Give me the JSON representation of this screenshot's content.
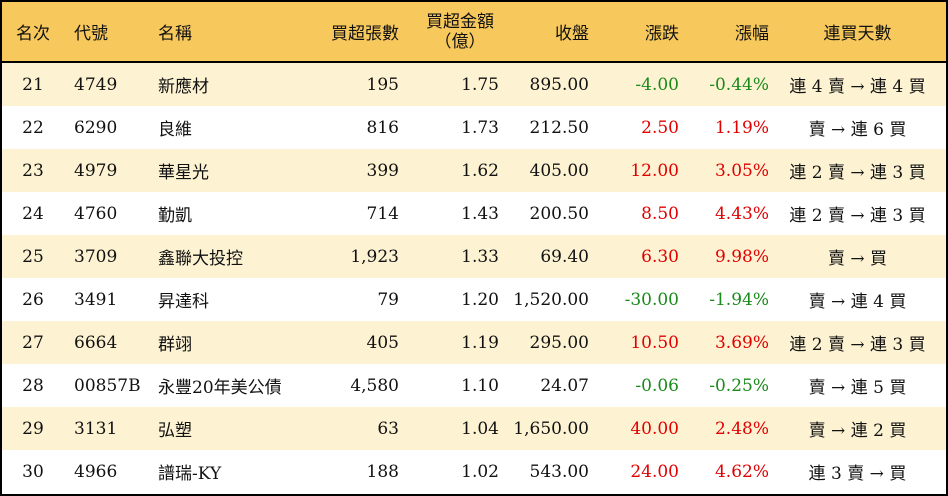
{
  "headers": {
    "rank": "名次",
    "code": "代號",
    "name": "名稱",
    "net_buy_volume": "買超張數",
    "net_buy_amount_line1": "買超金額",
    "net_buy_amount_line2": "（億）",
    "close": "收盤",
    "change": "漲跌",
    "change_pct": "漲幅",
    "streak": "連買天數"
  },
  "colors": {
    "header_bg": "#f7c85c",
    "odd_row_bg": "#fdf3d3",
    "even_row_bg": "#ffffff",
    "positive": "#e00000",
    "negative": "#1a8a1a"
  },
  "rows": [
    {
      "rank": "21",
      "code": "4749",
      "name": "新應材",
      "volume": "195",
      "amount": "1.75",
      "close": "895.00",
      "change": "-4.00",
      "pct": "-0.44%",
      "streak": "連 4 賣 → 連 4 買",
      "dir": "neg"
    },
    {
      "rank": "22",
      "code": "6290",
      "name": "良維",
      "volume": "816",
      "amount": "1.73",
      "close": "212.50",
      "change": "2.50",
      "pct": "1.19%",
      "streak": "賣 → 連 6 買",
      "dir": "pos"
    },
    {
      "rank": "23",
      "code": "4979",
      "name": "華星光",
      "volume": "399",
      "amount": "1.62",
      "close": "405.00",
      "change": "12.00",
      "pct": "3.05%",
      "streak": "連 2 賣 → 連 3 買",
      "dir": "pos"
    },
    {
      "rank": "24",
      "code": "4760",
      "name": "勤凱",
      "volume": "714",
      "amount": "1.43",
      "close": "200.50",
      "change": "8.50",
      "pct": "4.43%",
      "streak": "連 2 賣 → 連 3 買",
      "dir": "pos"
    },
    {
      "rank": "25",
      "code": "3709",
      "name": "鑫聯大投控",
      "volume": "1,923",
      "amount": "1.33",
      "close": "69.40",
      "change": "6.30",
      "pct": "9.98%",
      "streak": "賣 → 買",
      "dir": "pos"
    },
    {
      "rank": "26",
      "code": "3491",
      "name": "昇達科",
      "volume": "79",
      "amount": "1.20",
      "close": "1,520.00",
      "change": "-30.00",
      "pct": "-1.94%",
      "streak": "賣 → 連 4 買",
      "dir": "neg"
    },
    {
      "rank": "27",
      "code": "6664",
      "name": "群翊",
      "volume": "405",
      "amount": "1.19",
      "close": "295.00",
      "change": "10.50",
      "pct": "3.69%",
      "streak": "連 2 賣 → 連 3 買",
      "dir": "pos"
    },
    {
      "rank": "28",
      "code": "00857B",
      "name": "永豐20年美公債",
      "volume": "4,580",
      "amount": "1.10",
      "close": "24.07",
      "change": "-0.06",
      "pct": "-0.25%",
      "streak": "賣 → 連 5 買",
      "dir": "neg"
    },
    {
      "rank": "29",
      "code": "3131",
      "name": "弘塑",
      "volume": "63",
      "amount": "1.04",
      "close": "1,650.00",
      "change": "40.00",
      "pct": "2.48%",
      "streak": "賣 → 連 2 買",
      "dir": "pos"
    },
    {
      "rank": "30",
      "code": "4966",
      "name": "譜瑞-KY",
      "volume": "188",
      "amount": "1.02",
      "close": "543.00",
      "change": "24.00",
      "pct": "4.62%",
      "streak": "連 3 賣 → 買",
      "dir": "pos"
    }
  ]
}
